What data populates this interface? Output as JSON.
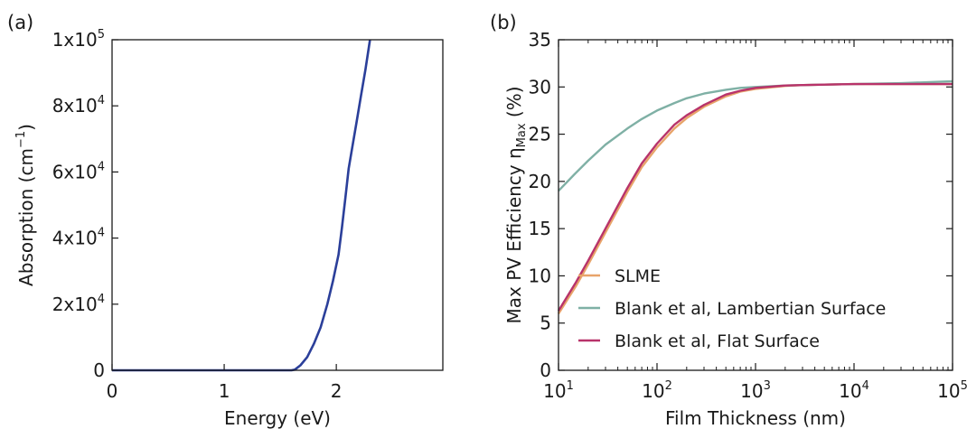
{
  "chart_data": [
    {
      "type": "line",
      "panel_label": "(a)",
      "xlabel": "Energy (eV)",
      "ylabel_parts": [
        "Absorption (cm",
        "−1",
        ")"
      ],
      "xlim": [
        0,
        2.95
      ],
      "ylim": [
        0,
        100000
      ],
      "x_ticks": [
        {
          "value": 0,
          "label": "0"
        },
        {
          "value": 1,
          "label": "1"
        },
        {
          "value": 2,
          "label": "2"
        }
      ],
      "y_ticks": [
        {
          "value": 0,
          "base": "0",
          "exp": ""
        },
        {
          "value": 20000,
          "base": "2x10",
          "exp": "4"
        },
        {
          "value": 40000,
          "base": "4x10",
          "exp": "4"
        },
        {
          "value": 60000,
          "base": "6x10",
          "exp": "4"
        },
        {
          "value": 80000,
          "base": "8x10",
          "exp": "4"
        },
        {
          "value": 100000,
          "base": "1x10",
          "exp": "5"
        }
      ],
      "series": [
        {
          "color": "#2b3f9a",
          "x": [
            0,
            1.0,
            1.6,
            1.63,
            1.68,
            1.74,
            1.8,
            1.86,
            1.92,
            1.97,
            2.02,
            2.05,
            2.08,
            2.11,
            2.14,
            2.18,
            2.22,
            2.26,
            2.3
          ],
          "y": [
            0,
            0,
            0,
            200,
            1500,
            4000,
            8000,
            13000,
            20000,
            27000,
            35000,
            43000,
            52000,
            61000,
            67000,
            75000,
            83000,
            91000,
            100000
          ]
        }
      ]
    },
    {
      "type": "line",
      "panel_label": "(b)",
      "xlabel": "Film Thickness (nm)",
      "ylabel_main": "Max PV Efficiency η",
      "ylabel_sub": "Max",
      "ylabel_tail": " (%)",
      "xscale": "log",
      "xlim": [
        10,
        100000
      ],
      "ylim": [
        0,
        35
      ],
      "x_ticks": [
        {
          "value": 10,
          "base": "10",
          "exp": "1"
        },
        {
          "value": 100,
          "base": "10",
          "exp": "2"
        },
        {
          "value": 1000,
          "base": "10",
          "exp": "3"
        },
        {
          "value": 10000,
          "base": "10",
          "exp": "4"
        },
        {
          "value": 100000,
          "base": "10",
          "exp": "5"
        }
      ],
      "y_ticks": [
        {
          "value": 0,
          "label": "0"
        },
        {
          "value": 5,
          "label": "5"
        },
        {
          "value": 10,
          "label": "10"
        },
        {
          "value": 15,
          "label": "15"
        },
        {
          "value": 20,
          "label": "20"
        },
        {
          "value": 25,
          "label": "25"
        },
        {
          "value": 30,
          "label": "30"
        },
        {
          "value": 35,
          "label": "35"
        }
      ],
      "legend_position": "lower-left",
      "series": [
        {
          "name": "SLME",
          "color": "#e8a46a",
          "x": [
            10,
            15,
            20,
            30,
            50,
            70,
            100,
            150,
            200,
            300,
            500,
            700,
            1000,
            2000,
            3000,
            5000,
            10000,
            20000,
            50000,
            100000
          ],
          "y": [
            6.0,
            8.9,
            11.2,
            14.6,
            18.9,
            21.5,
            23.6,
            25.6,
            26.7,
            27.9,
            29.0,
            29.5,
            29.8,
            30.1,
            30.2,
            30.25,
            30.3,
            30.3,
            30.3,
            30.3
          ]
        },
        {
          "name": "Blank et al, Lambertian Surface",
          "color": "#7fb0a5",
          "x": [
            10,
            15,
            20,
            30,
            50,
            70,
            100,
            150,
            200,
            300,
            500,
            700,
            1000,
            2000,
            5000,
            10000,
            30000,
            100000
          ],
          "y": [
            19.0,
            20.9,
            22.2,
            23.9,
            25.6,
            26.6,
            27.5,
            28.3,
            28.8,
            29.3,
            29.7,
            29.9,
            30.0,
            30.15,
            30.25,
            30.3,
            30.4,
            30.6
          ]
        },
        {
          "name": "Blank et al, Flat Surface",
          "color": "#b8336a",
          "x": [
            10,
            15,
            20,
            30,
            50,
            70,
            100,
            150,
            200,
            300,
            500,
            700,
            1000,
            2000,
            3000,
            5000,
            10000,
            20000,
            50000,
            100000
          ],
          "y": [
            6.3,
            9.3,
            11.6,
            15.0,
            19.3,
            21.9,
            24.0,
            26.0,
            27.0,
            28.1,
            29.2,
            29.6,
            29.9,
            30.15,
            30.2,
            30.25,
            30.3,
            30.3,
            30.3,
            30.3
          ]
        }
      ]
    }
  ]
}
